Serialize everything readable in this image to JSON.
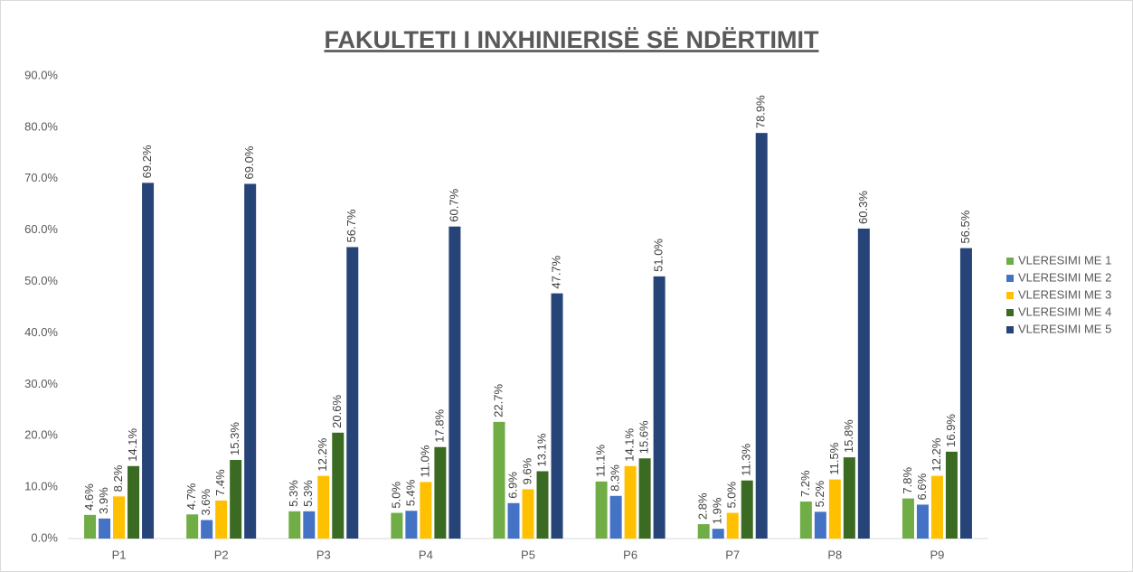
{
  "chart_data": {
    "type": "bar",
    "title": "FAKULTETI I INXHINIERISË SË NDËRTIMIT",
    "categories": [
      "P1",
      "P2",
      "P3",
      "P4",
      "P5",
      "P6",
      "P7",
      "P8",
      "P9"
    ],
    "series": [
      {
        "name": "VLERESIMI ME 1",
        "color": "#70ad47",
        "values": [
          4.6,
          4.7,
          5.3,
          5.0,
          22.7,
          11.1,
          2.8,
          7.2,
          7.8
        ],
        "value_labels": [
          "4.6%",
          "4.7%",
          "5.3%",
          "5.0%",
          "22.7%",
          "11.1%",
          "2.8%",
          "7.2%",
          "7.8%"
        ]
      },
      {
        "name": "VLERESIMI ME 2",
        "color": "#4472c4",
        "values": [
          3.9,
          3.6,
          5.3,
          5.4,
          6.9,
          8.3,
          1.9,
          5.2,
          6.6
        ],
        "value_labels": [
          "3.9%",
          "3.6%",
          "5.3%",
          "5.4%",
          "6.9%",
          "8.3%",
          "1.9%",
          "5.2%",
          "6.6%"
        ]
      },
      {
        "name": "VLERESIMI ME 3",
        "color": "#ffc000",
        "values": [
          8.2,
          7.4,
          12.2,
          11.0,
          9.6,
          14.1,
          5.0,
          11.5,
          12.2
        ],
        "value_labels": [
          "8.2%",
          "7.4%",
          "12.2%",
          "11.0%",
          "9.6%",
          "14.1%",
          "5.0%",
          "11.5%",
          "12.2%"
        ]
      },
      {
        "name": "VLERESIMI ME 4",
        "color": "#3b6b22",
        "values": [
          14.1,
          15.3,
          20.6,
          17.8,
          13.1,
          15.6,
          11.3,
          15.8,
          16.9
        ],
        "value_labels": [
          "14.1%",
          "15.3%",
          "20.6%",
          "17.8%",
          "13.1%",
          "15.6%",
          "11.3%",
          "15.8%",
          "16.9%"
        ]
      },
      {
        "name": "VLERESIMI ME 5",
        "color": "#264478",
        "values": [
          69.2,
          69.0,
          56.7,
          60.7,
          47.7,
          51.0,
          78.9,
          60.3,
          56.5
        ],
        "value_labels": [
          "69.2%",
          "69.0%",
          "56.7%",
          "60.7%",
          "47.7%",
          "51.0%",
          "78.9%",
          "60.3%",
          "56.5%"
        ]
      }
    ],
    "ylim": [
      0,
      90
    ],
    "yticks": [
      {
        "value": 0,
        "label": "0.0%"
      },
      {
        "value": 10,
        "label": "10.0%"
      },
      {
        "value": 20,
        "label": "20.0%"
      },
      {
        "value": 30,
        "label": "30.0%"
      },
      {
        "value": 40,
        "label": "40.0%"
      },
      {
        "value": 50,
        "label": "50.0%"
      },
      {
        "value": 60,
        "label": "60.0%"
      },
      {
        "value": 70,
        "label": "70.0%"
      },
      {
        "value": 80,
        "label": "80.0%"
      },
      {
        "value": 90,
        "label": "90.0%"
      }
    ],
    "grid": false,
    "legend": "right"
  }
}
